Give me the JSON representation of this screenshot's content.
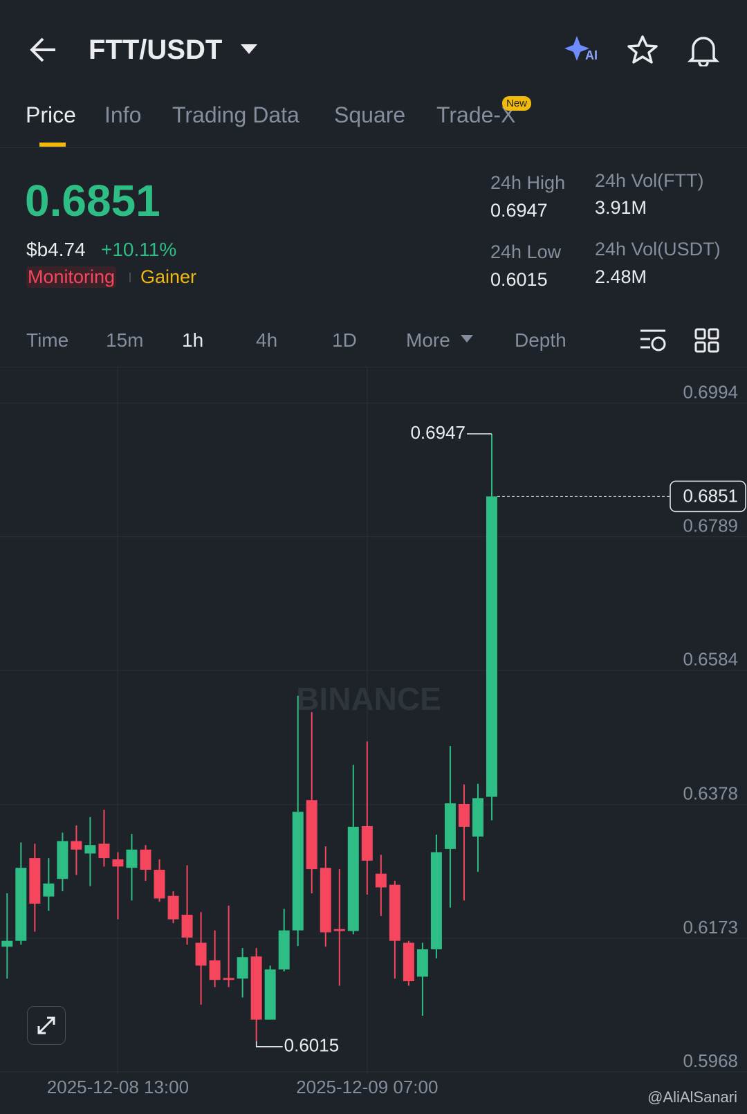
{
  "header": {
    "pair": "FTT/USDT"
  },
  "tabs": [
    "Price",
    "Info",
    "Trading Data",
    "Square",
    "Trade-X"
  ],
  "tab_badge": "New",
  "price": {
    "last": "0.6851",
    "fiat": "$b4.74",
    "change": "+10.11%",
    "tags": [
      "Monitoring",
      "Gainer"
    ]
  },
  "stats": [
    {
      "label": "24h High",
      "value": "0.6947"
    },
    {
      "label": "24h Vol(FTT)",
      "value": "3.91M"
    },
    {
      "label": "24h Low",
      "value": "0.6015"
    },
    {
      "label": "24h Vol(USDT)",
      "value": "2.48M"
    }
  ],
  "intervals": [
    "Time",
    "15m",
    "1h",
    "4h",
    "1D",
    "More",
    "Depth"
  ],
  "watermark": "BINANCE",
  "credit": "@AliAlSanari",
  "chart_data": {
    "type": "candlestick",
    "up_color": "#2ebd85",
    "down_color": "#f6465d",
    "categories": [
      null,
      null,
      null,
      null,
      null,
      null,
      null,
      null,
      "2025-12-08 13:00",
      null,
      null,
      null,
      null,
      null,
      null,
      null,
      null,
      null,
      null,
      null,
      null,
      null,
      null,
      null,
      null,
      null,
      "2025-12-09 07:00",
      null,
      null,
      null,
      null,
      null,
      null,
      null,
      null,
      null
    ],
    "candles": [
      {
        "open": 0.616,
        "high": 0.6242,
        "low": 0.6111,
        "close": 0.6169
      },
      {
        "open": 0.6169,
        "high": 0.632,
        "low": 0.6163,
        "close": 0.6281
      },
      {
        "open": 0.6296,
        "high": 0.6318,
        "low": 0.6183,
        "close": 0.6226
      },
      {
        "open": 0.6237,
        "high": 0.6296,
        "low": 0.6215,
        "close": 0.6257
      },
      {
        "open": 0.6264,
        "high": 0.6335,
        "low": 0.6245,
        "close": 0.6322
      },
      {
        "open": 0.6322,
        "high": 0.6346,
        "low": 0.627,
        "close": 0.6309
      },
      {
        "open": 0.6303,
        "high": 0.6359,
        "low": 0.6253,
        "close": 0.6316
      },
      {
        "open": 0.6318,
        "high": 0.637,
        "low": 0.6283,
        "close": 0.6296
      },
      {
        "open": 0.6294,
        "high": 0.6305,
        "low": 0.6202,
        "close": 0.6283
      },
      {
        "open": 0.6281,
        "high": 0.6333,
        "low": 0.6231,
        "close": 0.6309
      },
      {
        "open": 0.6309,
        "high": 0.6316,
        "low": 0.6261,
        "close": 0.6278
      },
      {
        "open": 0.6278,
        "high": 0.6294,
        "low": 0.6229,
        "close": 0.6234
      },
      {
        "open": 0.6238,
        "high": 0.6245,
        "low": 0.6196,
        "close": 0.6202
      },
      {
        "open": 0.6209,
        "high": 0.6285,
        "low": 0.6163,
        "close": 0.6174
      },
      {
        "open": 0.6166,
        "high": 0.6213,
        "low": 0.6071,
        "close": 0.6131
      },
      {
        "open": 0.6139,
        "high": 0.6185,
        "low": 0.6098,
        "close": 0.6109
      },
      {
        "open": 0.6112,
        "high": 0.6223,
        "low": 0.6098,
        "close": 0.6109
      },
      {
        "open": 0.6111,
        "high": 0.6158,
        "low": 0.6082,
        "close": 0.6144
      },
      {
        "open": 0.6145,
        "high": 0.6158,
        "low": 0.6015,
        "close": 0.6048
      },
      {
        "open": 0.6048,
        "high": 0.6131,
        "low": 0.6048,
        "close": 0.6125
      },
      {
        "open": 0.6125,
        "high": 0.6218,
        "low": 0.6122,
        "close": 0.6185
      },
      {
        "open": 0.6185,
        "high": 0.6545,
        "low": 0.6161,
        "close": 0.6367
      },
      {
        "open": 0.6385,
        "high": 0.652,
        "low": 0.6242,
        "close": 0.6279
      },
      {
        "open": 0.6281,
        "high": 0.6314,
        "low": 0.616,
        "close": 0.6182
      },
      {
        "open": 0.6187,
        "high": 0.6279,
        "low": 0.61,
        "close": 0.6184
      },
      {
        "open": 0.6184,
        "high": 0.6439,
        "low": 0.6179,
        "close": 0.6344
      },
      {
        "open": 0.6345,
        "high": 0.6475,
        "low": 0.624,
        "close": 0.6292
      },
      {
        "open": 0.6272,
        "high": 0.6301,
        "low": 0.6207,
        "close": 0.6251
      },
      {
        "open": 0.6255,
        "high": 0.6261,
        "low": 0.6111,
        "close": 0.6169
      },
      {
        "open": 0.6166,
        "high": 0.6169,
        "low": 0.61,
        "close": 0.6107
      },
      {
        "open": 0.6114,
        "high": 0.6166,
        "low": 0.6054,
        "close": 0.6156
      },
      {
        "open": 0.6156,
        "high": 0.6332,
        "low": 0.6142,
        "close": 0.6305
      },
      {
        "open": 0.631,
        "high": 0.6468,
        "low": 0.622,
        "close": 0.638
      },
      {
        "open": 0.6379,
        "high": 0.6409,
        "low": 0.6231,
        "close": 0.6344
      },
      {
        "open": 0.6329,
        "high": 0.641,
        "low": 0.6275,
        "close": 0.6388
      },
      {
        "open": 0.639,
        "high": 0.6947,
        "low": 0.6354,
        "close": 0.6851
      }
    ],
    "ylim": [
      0.5968,
      0.705
    ],
    "yticks": [
      0.5968,
      0.6173,
      0.6378,
      0.6584,
      0.6789,
      0.6994
    ],
    "grid": true,
    "high_label": 0.6947,
    "low_label": 0.6015,
    "last_price": 0.6851
  }
}
